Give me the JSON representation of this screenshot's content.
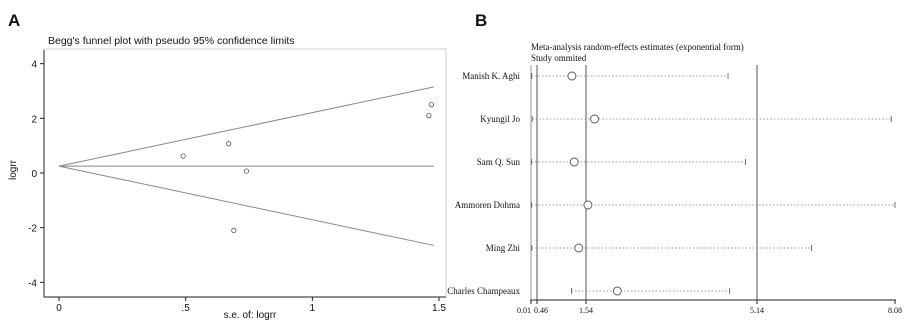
{
  "panels": {
    "a": {
      "letter": "A"
    },
    "b": {
      "letter": "B"
    }
  },
  "chart_data": [
    {
      "type": "scatter",
      "title": "Begg's funnel plot with pseudo 95% confidence limits",
      "xlabel": "s.e. of: logrr",
      "ylabel": "logrr",
      "xlim": [
        0,
        1.5
      ],
      "ylim": [
        -4.5,
        4.5
      ],
      "x_ticks": [
        0,
        0.5,
        1,
        1.5
      ],
      "x_tick_labels": [
        "0",
        ".5",
        "1",
        "1.5"
      ],
      "y_ticks": [
        4,
        2,
        0,
        -2,
        -4
      ],
      "y_tick_labels": [
        "4",
        "2",
        "0",
        "-2",
        "-4"
      ],
      "pooled_estimate": 0.25,
      "confidence_limits": {
        "x_end": 1.48,
        "upper_end": 3.15,
        "lower_end": -2.65
      },
      "points": [
        {
          "x": 0.49,
          "y": 0.62
        },
        {
          "x": 0.67,
          "y": 1.07
        },
        {
          "x": 0.74,
          "y": 0.07
        },
        {
          "x": 0.69,
          "y": -2.1
        },
        {
          "x": 1.46,
          "y": 2.1
        },
        {
          "x": 1.47,
          "y": 2.5
        }
      ],
      "grid": false
    },
    {
      "type": "scatter",
      "title": "Meta-analysis random-effects estimates (exponential form)",
      "subtitle": "Study ommited",
      "x_ticks": [
        0.01,
        0.46,
        1.54,
        5.14,
        8.08
      ],
      "x_tick_labels": [
        "0.01",
        "0.46",
        "1.54",
        "5.14",
        "8.08"
      ],
      "reference_lines": [
        0.46,
        1.54,
        5.14
      ],
      "studies": [
        {
          "name": "Manish K. Aghi",
          "estimate": 1.23,
          "lower": 0.06,
          "upper": 4.53
        },
        {
          "name": "Kyungil Jo",
          "estimate": 1.72,
          "lower": 0.1,
          "upper": 8.0
        },
        {
          "name": "Sam Q. Sun",
          "estimate": 1.28,
          "lower": 0.04,
          "upper": 4.9
        },
        {
          "name": "Ammoren Dohma",
          "estimate": 1.58,
          "lower": 0.05,
          "upper": 8.1
        },
        {
          "name": "Ming Zhi",
          "estimate": 1.38,
          "lower": 0.07,
          "upper": 6.3
        },
        {
          "name": "Charles Champeaux",
          "estimate": 2.2,
          "lower": 1.22,
          "upper": 4.56
        }
      ]
    }
  ]
}
